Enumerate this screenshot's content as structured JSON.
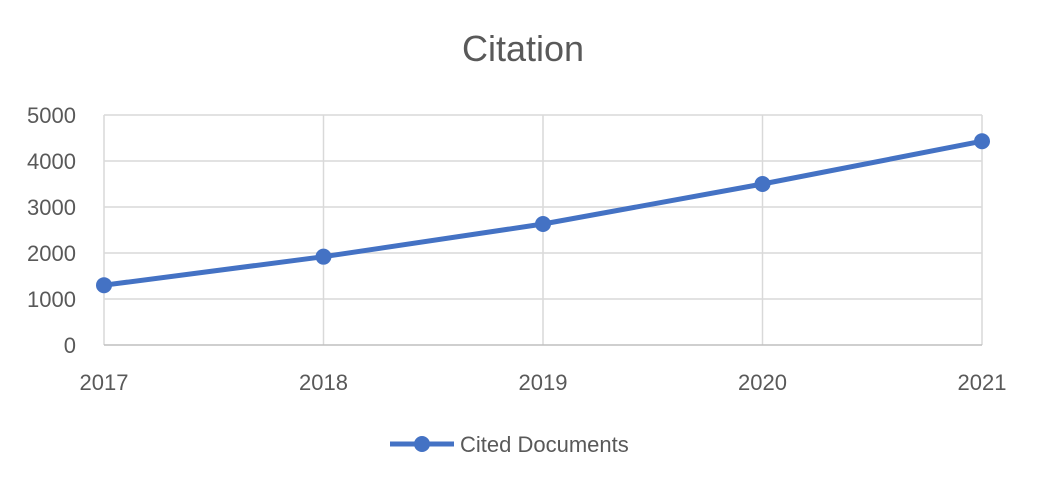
{
  "chart_data": {
    "type": "line",
    "title": "Citation",
    "xlabel": "",
    "ylabel": "",
    "x": [
      "2017",
      "2018",
      "2019",
      "2020",
      "2021"
    ],
    "ylim": [
      0,
      5000
    ],
    "yticks": [
      0,
      1000,
      2000,
      3000,
      4000,
      5000
    ],
    "grid": true,
    "legend_position": "bottom",
    "series": [
      {
        "name": "Cited Documents",
        "values": [
          1300,
          1920,
          2630,
          3500,
          4430
        ],
        "color": "#4472C4"
      }
    ]
  }
}
